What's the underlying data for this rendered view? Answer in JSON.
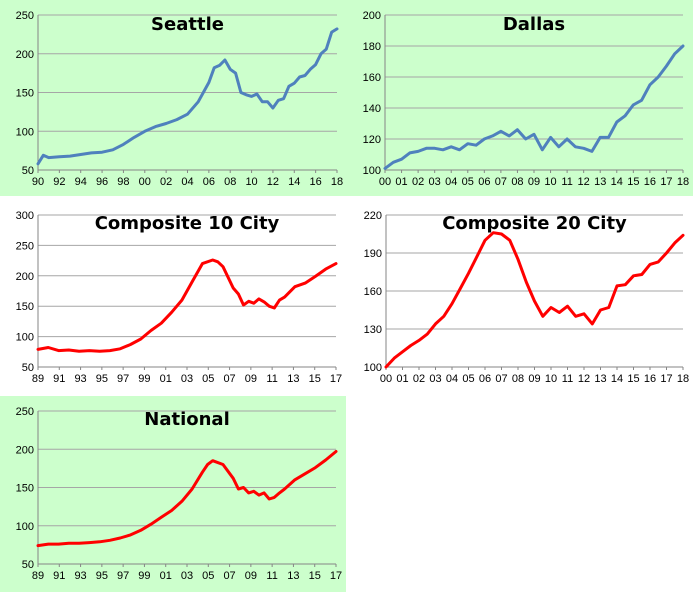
{
  "chart_data": [
    {
      "type": "line",
      "title": "Seattle",
      "background": "#ccffcc",
      "line_color": "#4f81bd",
      "ylim": [
        50,
        250
      ],
      "yticks": [
        "50",
        "100",
        "150",
        "200",
        "250"
      ],
      "xlim": [
        1990,
        2018
      ],
      "xticks": [
        "90",
        "92",
        "94",
        "96",
        "98",
        "00",
        "02",
        "04",
        "06",
        "08",
        "10",
        "12",
        "14",
        "16",
        "18"
      ],
      "series": [
        {
          "x": [
            1990,
            1990.5,
            1991,
            1992,
            1993,
            1994,
            1995,
            1996,
            1997,
            1998,
            1999,
            2000,
            2001,
            2002,
            2003,
            2004,
            2005,
            2006,
            2006.5,
            2007,
            2007.5,
            2008,
            2008.5,
            2009,
            2009.5,
            2010,
            2010.5,
            2011,
            2011.5,
            2012,
            2012.5,
            2013,
            2013.5,
            2014,
            2014.5,
            2015,
            2015.5,
            2016,
            2016.5,
            2017,
            2017.5,
            2018
          ],
          "y": [
            58,
            69,
            66,
            67,
            68,
            70,
            72,
            73,
            76,
            83,
            92,
            100,
            106,
            110,
            115,
            122,
            138,
            163,
            182,
            185,
            192,
            180,
            175,
            150,
            147,
            145,
            148,
            138,
            138,
            130,
            140,
            142,
            158,
            162,
            170,
            172,
            180,
            186,
            200,
            206,
            228,
            232
          ]
        }
      ]
    },
    {
      "type": "line",
      "title": "Dallas",
      "background": "#ccffcc",
      "line_color": "#4f81bd",
      "ylim": [
        100,
        200
      ],
      "yticks": [
        "100",
        "120",
        "140",
        "160",
        "180",
        "200"
      ],
      "xlim": [
        2000,
        2018
      ],
      "xticks": [
        "00",
        "01",
        "02",
        "03",
        "04",
        "05",
        "06",
        "07",
        "08",
        "09",
        "10",
        "11",
        "12",
        "13",
        "14",
        "15",
        "16",
        "17",
        "18"
      ],
      "series": [
        {
          "x": [
            2000,
            2000.5,
            2001,
            2001.5,
            2002,
            2002.5,
            2003,
            2003.5,
            2004,
            2004.5,
            2005,
            2005.5,
            2006,
            2006.5,
            2007,
            2007.5,
            2008,
            2008.5,
            2009,
            2009.5,
            2010,
            2010.5,
            2011,
            2011.5,
            2012,
            2012.5,
            2013,
            2013.5,
            2014,
            2014.5,
            2015,
            2015.5,
            2016,
            2016.5,
            2017,
            2017.5,
            2018
          ],
          "y": [
            101,
            105,
            107,
            111,
            112,
            114,
            114,
            113,
            115,
            113,
            117,
            116,
            120,
            122,
            125,
            122,
            126,
            120,
            123,
            113,
            121,
            115,
            120,
            115,
            114,
            112,
            121,
            121,
            131,
            135,
            142,
            145,
            155,
            160,
            167,
            175,
            180
          ]
        }
      ]
    },
    {
      "type": "line",
      "title": "Composite 10 City",
      "background": "#ffffff",
      "line_color": "#ff0000",
      "ylim": [
        50,
        300
      ],
      "yticks": [
        "50",
        "100",
        "150",
        "200",
        "250",
        "300"
      ],
      "xlim": [
        1989,
        2018
      ],
      "xticks": [
        "89",
        "91",
        "93",
        "95",
        "97",
        "99",
        "01",
        "03",
        "05",
        "07",
        "09",
        "11",
        "13",
        "15",
        "17"
      ],
      "series": [
        {
          "x": [
            1989,
            1990,
            1991,
            1992,
            1993,
            1994,
            1995,
            1996,
            1997,
            1998,
            1999,
            2000,
            2001,
            2002,
            2003,
            2004,
            2005,
            2006,
            2006.5,
            2007,
            2008,
            2008.5,
            2009,
            2009.5,
            2010,
            2010.5,
            2011,
            2011.5,
            2012,
            2012.5,
            2013,
            2014,
            2015,
            2016,
            2017,
            2018
          ],
          "y": [
            79,
            82,
            77,
            78,
            76,
            77,
            76,
            77,
            80,
            87,
            96,
            110,
            122,
            140,
            160,
            190,
            220,
            226,
            223,
            215,
            180,
            170,
            152,
            158,
            155,
            162,
            157,
            150,
            147,
            160,
            165,
            182,
            188,
            199,
            211,
            220
          ]
        }
      ]
    },
    {
      "type": "line",
      "title": "Composite 20 City",
      "background": "#ffffff",
      "line_color": "#ff0000",
      "ylim": [
        100,
        220
      ],
      "yticks": [
        "100",
        "130",
        "160",
        "190",
        "220"
      ],
      "xlim": [
        2000,
        2018
      ],
      "xticks": [
        "00",
        "01",
        "02",
        "03",
        "04",
        "05",
        "06",
        "07",
        "08",
        "09",
        "10",
        "11",
        "12",
        "13",
        "14",
        "15",
        "16",
        "17",
        "18"
      ],
      "series": [
        {
          "x": [
            2000,
            2000.5,
            2001,
            2001.5,
            2002,
            2002.5,
            2003,
            2003.5,
            2004,
            2004.5,
            2005,
            2005.5,
            2006,
            2006.5,
            2007,
            2007.5,
            2008,
            2008.5,
            2009,
            2009.5,
            2010,
            2010.5,
            2011,
            2011.5,
            2012,
            2012.5,
            2013,
            2013.5,
            2014,
            2014.5,
            2015,
            2015.5,
            2016,
            2016.5,
            2017,
            2017.5,
            2018
          ],
          "y": [
            100,
            107,
            112,
            117,
            121,
            126,
            134,
            140,
            150,
            162,
            174,
            187,
            200,
            206,
            205,
            200,
            185,
            167,
            152,
            140,
            147,
            143,
            148,
            140,
            142,
            134,
            145,
            147,
            164,
            165,
            172,
            173,
            181,
            183,
            190,
            198,
            204
          ]
        }
      ]
    },
    {
      "type": "line",
      "title": "National",
      "background": "#ccffcc",
      "line_color": "#ff0000",
      "ylim": [
        50,
        250
      ],
      "yticks": [
        "50",
        "100",
        "150",
        "200",
        "250"
      ],
      "xlim": [
        1989,
        2018
      ],
      "xticks": [
        "89",
        "91",
        "93",
        "95",
        "97",
        "99",
        "01",
        "03",
        "05",
        "07",
        "09",
        "11",
        "13",
        "15",
        "17"
      ],
      "series": [
        {
          "x": [
            1989,
            1990,
            1991,
            1992,
            1993,
            1994,
            1995,
            1996,
            1997,
            1998,
            1999,
            2000,
            2001,
            2002,
            2003,
            2004,
            2005,
            2005.5,
            2006,
            2007,
            2008,
            2008.5,
            2009,
            2009.5,
            2010,
            2010.5,
            2011,
            2011.5,
            2012,
            2012.5,
            2013,
            2014,
            2015,
            2016,
            2017,
            2018
          ],
          "y": [
            74,
            76,
            76,
            77,
            77,
            78,
            79,
            81,
            84,
            88,
            94,
            102,
            111,
            120,
            132,
            148,
            170,
            180,
            185,
            180,
            162,
            148,
            150,
            143,
            145,
            140,
            143,
            135,
            137,
            143,
            148,
            160,
            168,
            176,
            186,
            197
          ]
        }
      ]
    }
  ]
}
